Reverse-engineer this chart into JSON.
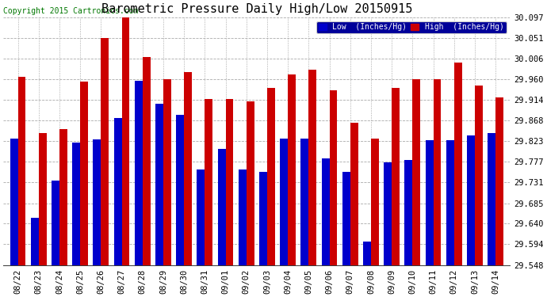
{
  "title": "Barometric Pressure Daily High/Low 20150915",
  "copyright": "Copyright 2015 Cartronics.com",
  "categories": [
    "08/22",
    "08/23",
    "08/24",
    "08/25",
    "08/26",
    "08/27",
    "08/28",
    "08/29",
    "08/30",
    "08/31",
    "09/01",
    "09/02",
    "09/03",
    "09/04",
    "09/05",
    "09/06",
    "09/07",
    "09/08",
    "09/09",
    "09/10",
    "09/11",
    "09/12",
    "09/13",
    "09/14"
  ],
  "low_values": [
    29.828,
    29.653,
    29.735,
    29.82,
    29.827,
    29.873,
    29.957,
    29.905,
    29.88,
    29.76,
    29.805,
    29.76,
    29.755,
    29.828,
    29.828,
    29.785,
    29.755,
    29.6,
    29.775,
    29.78,
    29.825,
    29.825,
    29.835,
    29.84
  ],
  "high_values": [
    29.965,
    29.84,
    29.85,
    29.955,
    30.051,
    30.097,
    30.008,
    29.96,
    29.975,
    29.915,
    29.915,
    29.91,
    29.94,
    29.97,
    29.98,
    29.935,
    29.863,
    29.828,
    29.94,
    29.96,
    29.96,
    29.997,
    29.945,
    29.92
  ],
  "low_color": "#0000cc",
  "high_color": "#cc0000",
  "bg_color": "#ffffff",
  "grid_color": "#aaaaaa",
  "yticks": [
    29.548,
    29.594,
    29.64,
    29.685,
    29.731,
    29.777,
    29.823,
    29.868,
    29.914,
    29.96,
    30.006,
    30.051,
    30.097
  ],
  "ymin": 29.548,
  "ymax": 30.097,
  "legend_low_label": "Low  (Inches/Hg)",
  "legend_high_label": "High  (Inches/Hg)",
  "title_fontsize": 11,
  "copyright_fontsize": 7,
  "tick_fontsize": 7.5,
  "bar_width": 0.38
}
